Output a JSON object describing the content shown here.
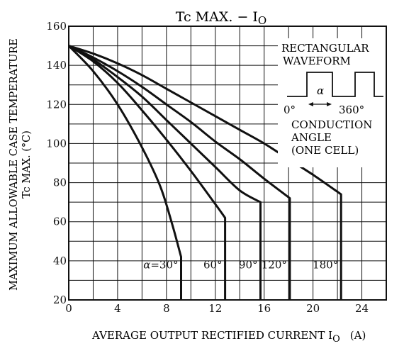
{
  "chart_data": {
    "type": "line",
    "title": "Tc MAX. − I",
    "title_sub": "O",
    "xlabel": "AVERAGE OUTPUT RECTIFIED CURRENT  I",
    "xlabel_sub": "O",
    "xlabel_unit": "(A)",
    "ylabel_line1": "MAXIMUM ALLOWABLE CASE TEMPERATURE",
    "ylabel_line2": "Tc MAX.  (°C)",
    "xlim": [
      0,
      26
    ],
    "ylim": [
      20,
      160
    ],
    "xticks": [
      0,
      4,
      8,
      12,
      16,
      20,
      24
    ],
    "yticks": [
      20,
      40,
      60,
      80,
      100,
      120,
      140,
      160
    ],
    "grid": true,
    "series": [
      {
        "name": "α=30°",
        "points": [
          [
            0,
            150
          ],
          [
            2,
            137
          ],
          [
            4,
            120
          ],
          [
            6,
            98
          ],
          [
            7.5,
            78
          ],
          [
            8.5,
            58
          ],
          [
            9.2,
            42
          ],
          [
            9.2,
            20
          ]
        ]
      },
      {
        "name": "60°",
        "points": [
          [
            0,
            150
          ],
          [
            2,
            142
          ],
          [
            4,
            131
          ],
          [
            6,
            117
          ],
          [
            8,
            102
          ],
          [
            10,
            86
          ],
          [
            12,
            69
          ],
          [
            12.8,
            62
          ],
          [
            12.8,
            20
          ]
        ]
      },
      {
        "name": "90°",
        "points": [
          [
            0,
            150
          ],
          [
            2,
            143
          ],
          [
            4,
            134
          ],
          [
            6,
            124
          ],
          [
            8,
            112
          ],
          [
            10,
            100
          ],
          [
            12,
            88
          ],
          [
            14,
            76
          ],
          [
            15.7,
            70
          ],
          [
            15.7,
            20
          ]
        ]
      },
      {
        "name": "120°",
        "points": [
          [
            0,
            150
          ],
          [
            2,
            144
          ],
          [
            4,
            137
          ],
          [
            6,
            129
          ],
          [
            8,
            120
          ],
          [
            10,
            111
          ],
          [
            12,
            101
          ],
          [
            14,
            92
          ],
          [
            16,
            82
          ],
          [
            18.1,
            72
          ],
          [
            18.1,
            20
          ]
        ]
      },
      {
        "name": "180°",
        "points": [
          [
            0,
            150
          ],
          [
            2,
            146
          ],
          [
            4,
            141
          ],
          [
            6,
            135
          ],
          [
            8,
            128
          ],
          [
            10,
            121
          ],
          [
            12,
            114
          ],
          [
            14,
            107
          ],
          [
            16,
            100
          ],
          [
            18,
            92
          ],
          [
            20,
            84
          ],
          [
            22.3,
            74
          ],
          [
            22.3,
            20
          ]
        ]
      }
    ],
    "legend": {
      "line1": "RECTANGULAR",
      "line2": "WAVEFORM",
      "alpha": "α",
      "deg0": "0°",
      "deg360": "360°",
      "line3": "CONDUCTION",
      "line4": "ANGLE",
      "line5": "(ONE CELL)"
    }
  }
}
